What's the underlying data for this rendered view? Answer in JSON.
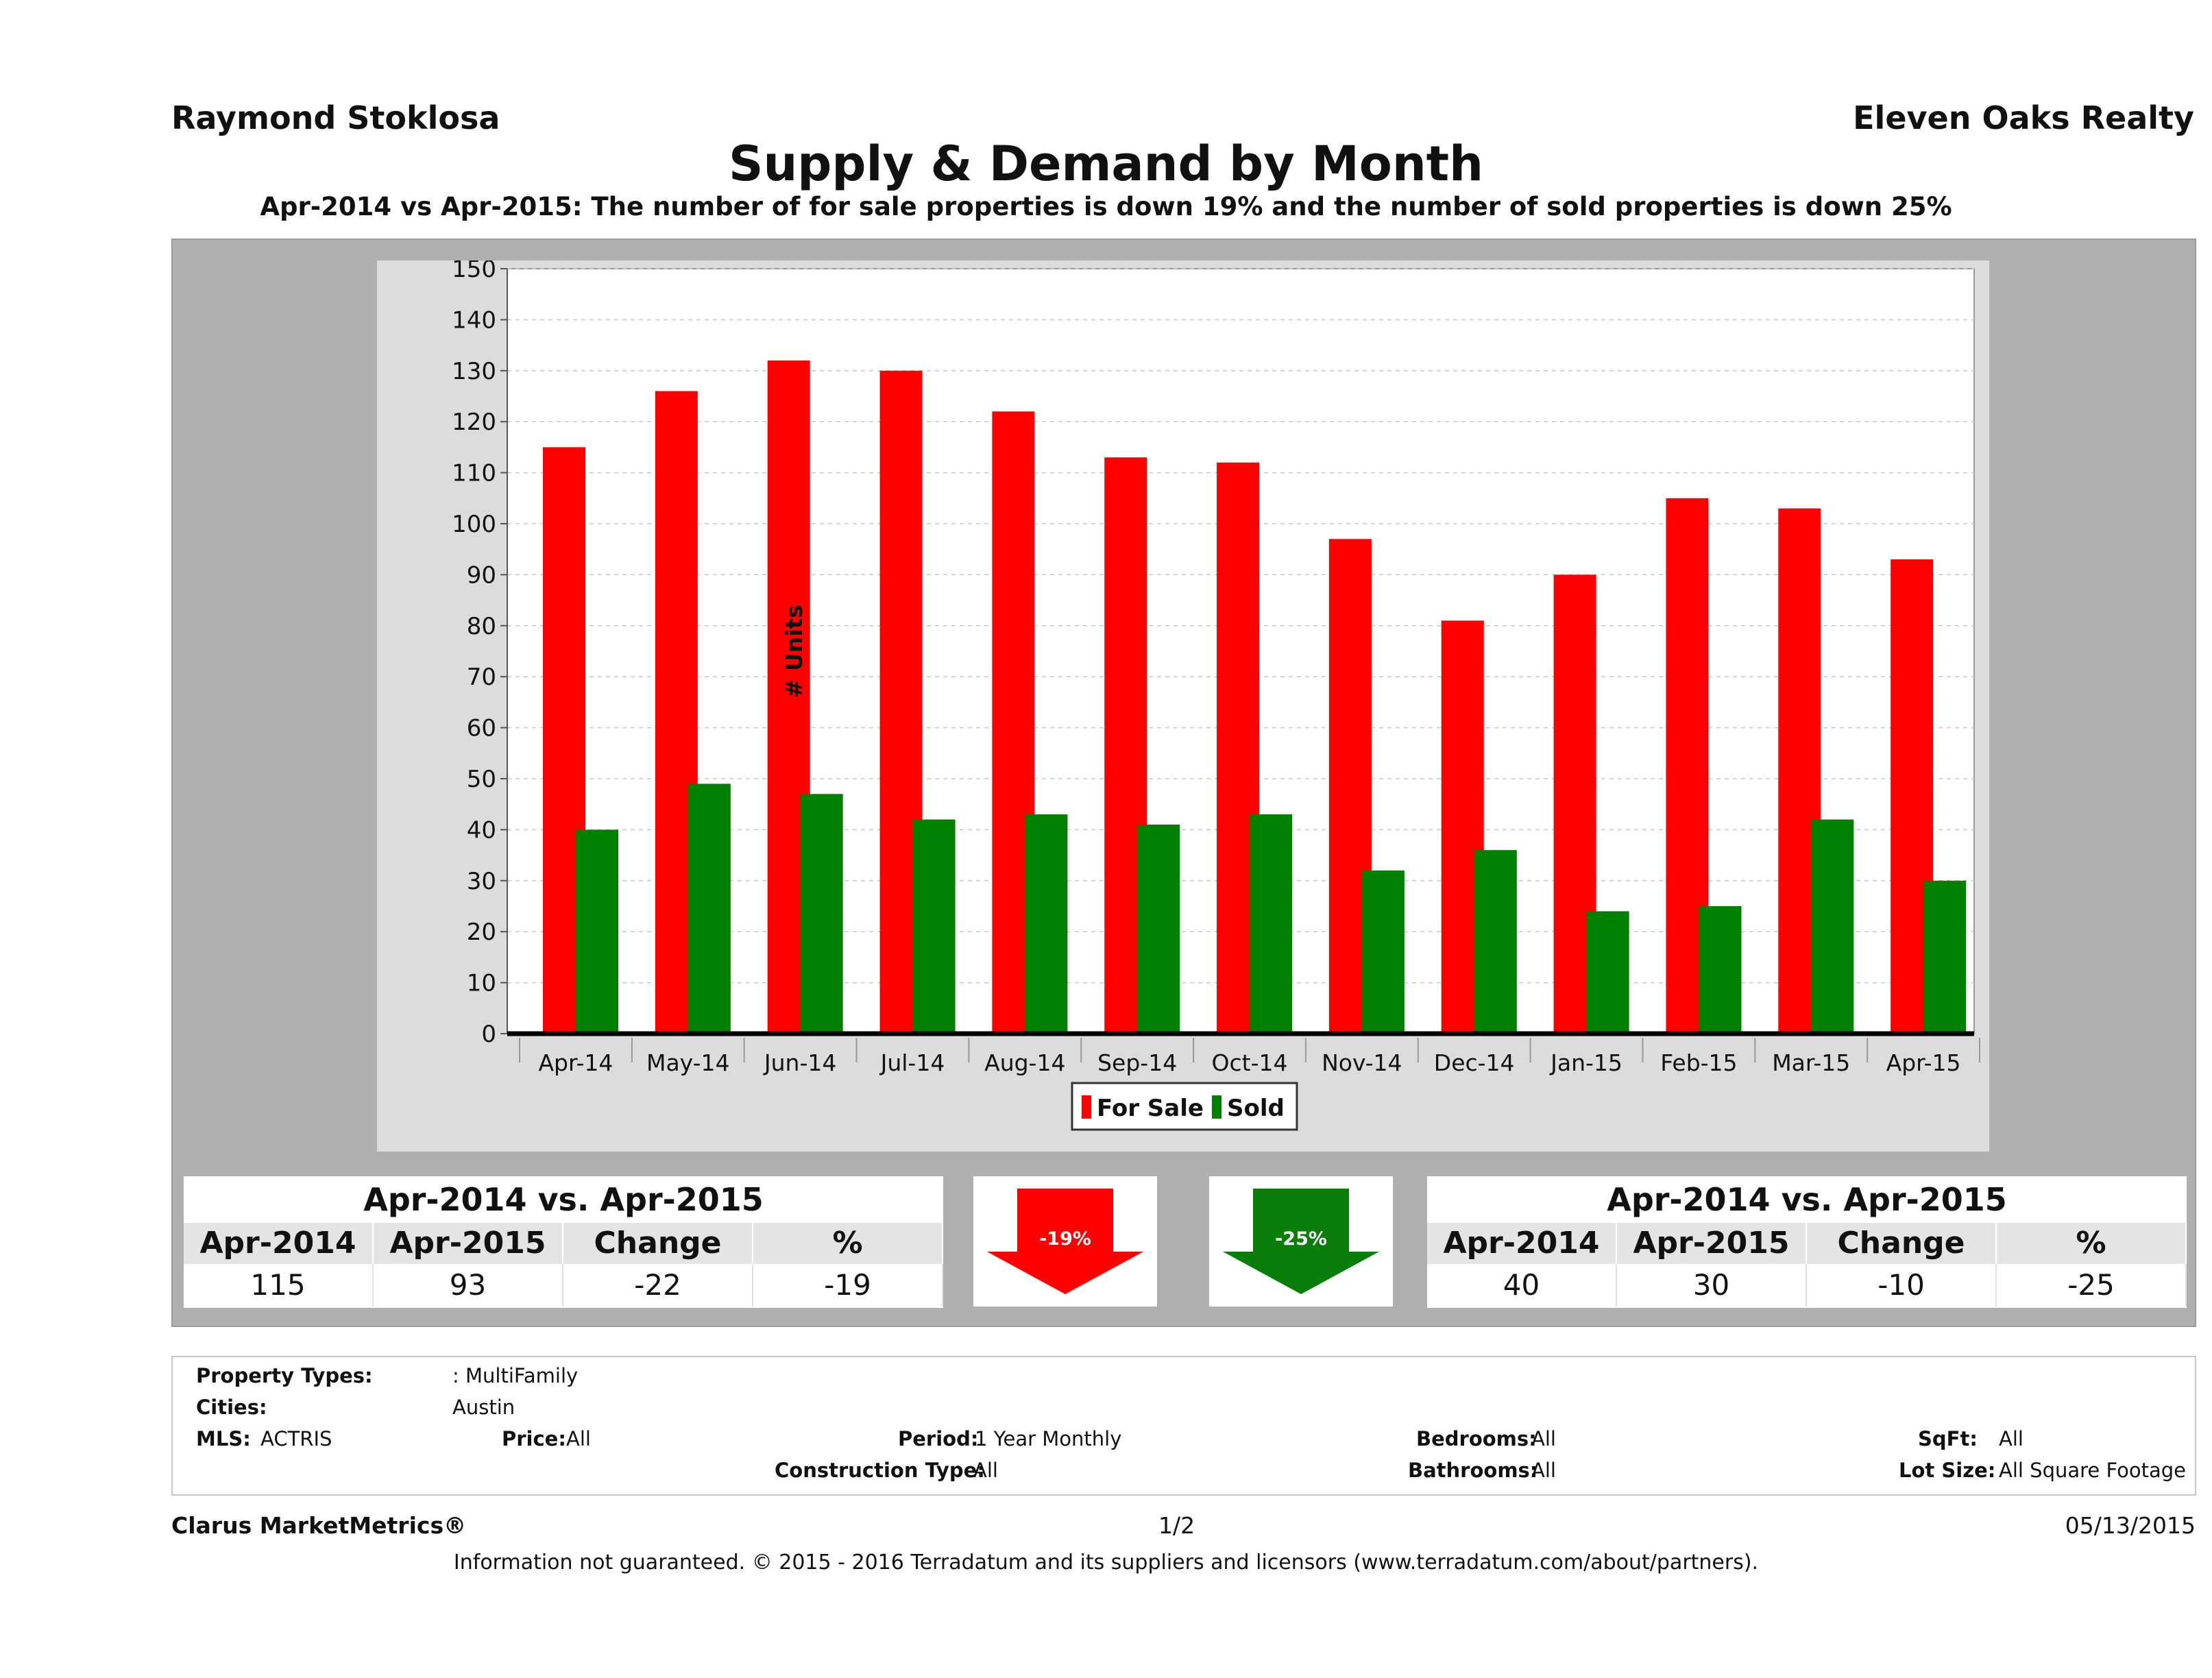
{
  "header": {
    "agent": "Raymond Stoklosa",
    "brokerage": "Eleven Oaks Realty",
    "title": "Supply & Demand by Month",
    "subtitle": "Apr-2014 vs Apr-2015: The number of for sale properties is down 19% and the number of sold properties is down 25%"
  },
  "chart_data": {
    "type": "bar",
    "categories": [
      "Apr-14",
      "May-14",
      "Jun-14",
      "Jul-14",
      "Aug-14",
      "Sep-14",
      "Oct-14",
      "Nov-14",
      "Dec-14",
      "Jan-15",
      "Feb-15",
      "Mar-15",
      "Apr-15"
    ],
    "series": [
      {
        "name": "For Sale",
        "color": "#ff0000",
        "values": [
          115,
          126,
          132,
          130,
          122,
          113,
          112,
          97,
          81,
          90,
          105,
          103,
          93
        ]
      },
      {
        "name": "Sold",
        "color": "#008000",
        "values": [
          40,
          49,
          47,
          42,
          43,
          41,
          43,
          32,
          36,
          24,
          25,
          42,
          30
        ]
      }
    ],
    "ylabel": "# Units",
    "ylim": [
      0,
      150
    ],
    "yticks": [
      0,
      10,
      20,
      30,
      40,
      50,
      60,
      70,
      80,
      90,
      100,
      110,
      120,
      130,
      140,
      150
    ],
    "grid": true,
    "legend": "bottom-center"
  },
  "for_sale_stats": {
    "title": "Apr-2014 vs. Apr-2015",
    "headers": [
      "Apr-2014",
      "Apr-2015",
      "Change",
      "%"
    ],
    "values": [
      "115",
      "93",
      "-22",
      "-19"
    ],
    "arrow_label": "-19%",
    "arrow_color": "#ff0000"
  },
  "sold_stats": {
    "title": "Apr-2014 vs. Apr-2015",
    "headers": [
      "Apr-2014",
      "Apr-2015",
      "Change",
      "%"
    ],
    "values": [
      "40",
      "30",
      "-10",
      "-25"
    ],
    "arrow_label": "-25%",
    "arrow_color": "#0a7d0a"
  },
  "criteria": {
    "property_types_label": "Property Types:",
    "property_types_value": ": MultiFamily",
    "cities_label": "Cities:",
    "cities_value": "Austin",
    "mls_label": "MLS:",
    "mls_value": "ACTRIS",
    "price_label": "Price:",
    "price_value": "All",
    "period_label": "Period:",
    "period_value": "1 Year Monthly",
    "construction_label": "Construction Type:",
    "construction_value": "All",
    "bedrooms_label": "Bedrooms:",
    "bedrooms_value": "All",
    "bathrooms_label": "Bathrooms:",
    "bathrooms_value": "All",
    "sqft_label": "SqFt:",
    "sqft_value": "All",
    "lot_label": "Lot Size:",
    "lot_value": "All Square Footage"
  },
  "footer": {
    "brand": "Clarus MarketMetrics®",
    "page": "1/2",
    "date": "05/13/2015",
    "disclaimer": "Information not guaranteed. © 2015 - 2016 Terradatum and its suppliers and licensors (www.terradatum.com/about/partners)."
  }
}
